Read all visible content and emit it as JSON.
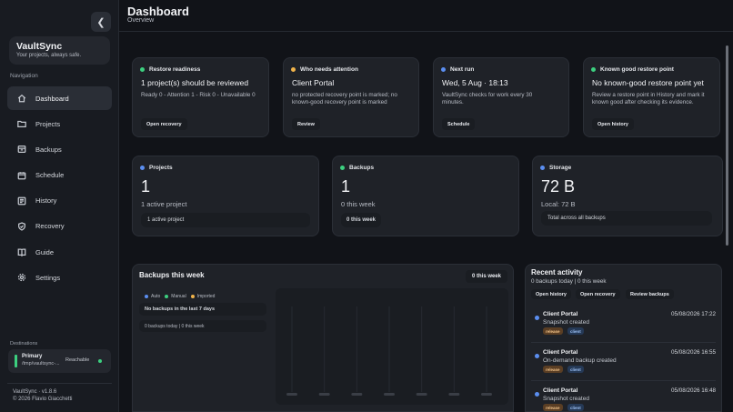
{
  "app": {
    "brand_name": "VaultSync",
    "brand_tagline": "Your projects, always safe.",
    "version": "VaultSync · v1.8.6",
    "copyright": "© 2026 Flavio Giacchetti"
  },
  "header": {
    "title": "Dashboard",
    "subtitle": "Overview"
  },
  "sidebar": {
    "nav_label": "Navigation",
    "items": [
      {
        "label": "Dashboard",
        "icon": "home-icon"
      },
      {
        "label": "Projects",
        "icon": "folder-icon"
      },
      {
        "label": "Backups",
        "icon": "archive-icon"
      },
      {
        "label": "Schedule",
        "icon": "calendar-icon"
      },
      {
        "label": "History",
        "icon": "list-icon"
      },
      {
        "label": "Recovery",
        "icon": "shield-icon"
      },
      {
        "label": "Guide",
        "icon": "book-icon"
      },
      {
        "label": "Settings",
        "icon": "gear-icon"
      }
    ],
    "destinations_label": "Destinations",
    "destination": {
      "name": "Primary",
      "path": "/tmp/vaultsync-...",
      "status": "Reachable"
    }
  },
  "cards": {
    "readiness": {
      "head": "Restore readiness",
      "title": "1 project(s) should be reviewed",
      "text": "Ready 0 - Attention 1 - Risk 0 - Unavailable 0",
      "button": "Open recovery",
      "dot": "#3ccf7f"
    },
    "attention": {
      "head": "Who needs attention",
      "title": "Client Portal",
      "text": "no protected recovery point is marked; no known-good recovery point is marked",
      "button": "Review",
      "dot": "#f0b34a"
    },
    "next_run": {
      "head": "Next run",
      "title": "Wed, 5 Aug · 18:13",
      "text": "VaultSync checks for work every 30 minutes.",
      "button": "Schedule",
      "dot": "#5b8ef0"
    },
    "known_good": {
      "head": "Known good restore point",
      "title": "No known-good restore point yet",
      "text": "Review a restore point in History and mark it known good after checking its evidence.",
      "button": "Open history",
      "dot": "#3ccf7f"
    }
  },
  "stats": {
    "projects": {
      "head": "Projects",
      "value": "1",
      "sub": "1 active project",
      "bar": "1 active project",
      "dot": "#5b8ef0"
    },
    "backups": {
      "head": "Backups",
      "value": "1",
      "sub": "0 this week",
      "bar": "0 this week",
      "dot": "#3ccf7f"
    },
    "storage": {
      "head": "Storage",
      "value": "72 B",
      "sub": "Local: 72 B",
      "bar": "Total across all backups",
      "dot": "#5b8ef0"
    }
  },
  "week": {
    "title": "Backups this week",
    "badge": "0 this week",
    "legend": [
      {
        "label": "Auto",
        "color": "#5b8ef0"
      },
      {
        "label": "Manual",
        "color": "#3ccf7f"
      },
      {
        "label": "Imported",
        "color": "#f0b34a"
      }
    ],
    "empty": "No backups in the last 7 days",
    "summary": "0 backups today | 0 this week",
    "chart_data": {
      "type": "bar",
      "categories": [
        "",
        "",
        "",
        "",
        "",
        "",
        ""
      ],
      "series": [
        {
          "values": [
            0,
            0,
            0,
            0,
            0,
            0,
            0
          ]
        }
      ],
      "title": "",
      "xlabel": "",
      "ylabel": ""
    }
  },
  "activity": {
    "title": "Recent activity",
    "summary": "0 backups today | 0 this week",
    "buttons": [
      "Open history",
      "Open recovery",
      "Review backups"
    ],
    "items": [
      {
        "name": "Client Portal",
        "desc": "Snapshot created",
        "time": "05/08/2026 17:22",
        "tags": [
          "release",
          "client"
        ]
      },
      {
        "name": "Client Portal",
        "desc": "On-demand backup created",
        "time": "05/08/2026 16:55",
        "tags": [
          "release",
          "client"
        ]
      },
      {
        "name": "Client Portal",
        "desc": "Snapshot created",
        "time": "05/08/2026 16:48",
        "tags": [
          "release",
          "client"
        ]
      }
    ]
  }
}
